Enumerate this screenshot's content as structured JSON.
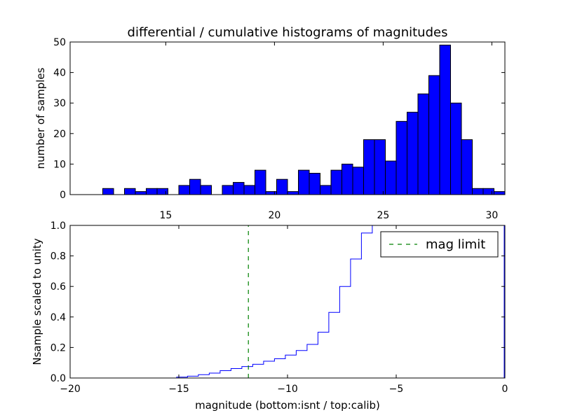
{
  "chart_data": [
    {
      "type": "bar",
      "title": "differential / cumulative histograms of magnitudes",
      "ylabel": "number of samples",
      "xlim": [
        10.6,
        30.6
      ],
      "ylim": [
        0,
        50
      ],
      "xticks": [
        15,
        20,
        25,
        30
      ],
      "yticks": [
        0,
        10,
        20,
        30,
        40,
        50
      ],
      "bar_color": "#0000ff",
      "bin_width": 0.5,
      "bin_starts": [
        12.1,
        12.6,
        13.1,
        13.6,
        14.1,
        14.6,
        15.1,
        15.6,
        16.1,
        16.6,
        17.1,
        17.6,
        18.1,
        18.6,
        19.1,
        19.6,
        20.1,
        20.6,
        21.1,
        21.6,
        22.1,
        22.6,
        23.1,
        23.6,
        24.1,
        24.6,
        25.1,
        25.6,
        26.1,
        26.6,
        27.1,
        27.6,
        28.1,
        28.6,
        29.1,
        29.6,
        30.1
      ],
      "values": [
        2,
        0,
        2,
        1,
        2,
        2,
        0,
        3,
        5,
        3,
        0,
        3,
        4,
        3,
        8,
        1,
        5,
        1,
        8,
        7,
        3,
        8,
        10,
        9,
        18,
        18,
        11,
        24,
        27,
        33,
        39,
        49,
        30,
        18,
        2,
        2,
        1
      ]
    },
    {
      "type": "line",
      "step": true,
      "xlabel": "magnitude (bottom:isnt / top:calib)",
      "ylabel": "Nsample scaled to unity",
      "xlim": [
        -20,
        0
      ],
      "ylim": [
        0,
        1
      ],
      "xticks": [
        -20,
        -15,
        -10,
        -5,
        0
      ],
      "yticks": [
        "0.0",
        "0.2",
        "0.4",
        "0.6",
        "0.8",
        "1.0"
      ],
      "series": [
        {
          "color": "#0000ff",
          "x": [
            -20,
            -15.6,
            -15.1,
            -14.6,
            -14.1,
            -13.6,
            -13.1,
            -12.6,
            -12.1,
            -11.6,
            -11.1,
            -10.6,
            -10.1,
            -9.6,
            -9.1,
            -8.6,
            -8.1,
            -7.6,
            -7.1,
            -6.6,
            -6.1,
            0
          ],
          "y": [
            0,
            0,
            0.006,
            0.012,
            0.022,
            0.032,
            0.048,
            0.062,
            0.075,
            0.09,
            0.11,
            0.126,
            0.15,
            0.18,
            0.22,
            0.3,
            0.43,
            0.6,
            0.78,
            0.95,
            1.0,
            1.0
          ]
        },
        {
          "name": "mag limit",
          "color": "#008000",
          "style": "dashed",
          "x": [
            -11.8,
            -11.8
          ],
          "y": [
            0,
            1
          ]
        }
      ],
      "legend": {
        "placement": "top-right",
        "entries": [
          "mag limit"
        ]
      }
    }
  ]
}
